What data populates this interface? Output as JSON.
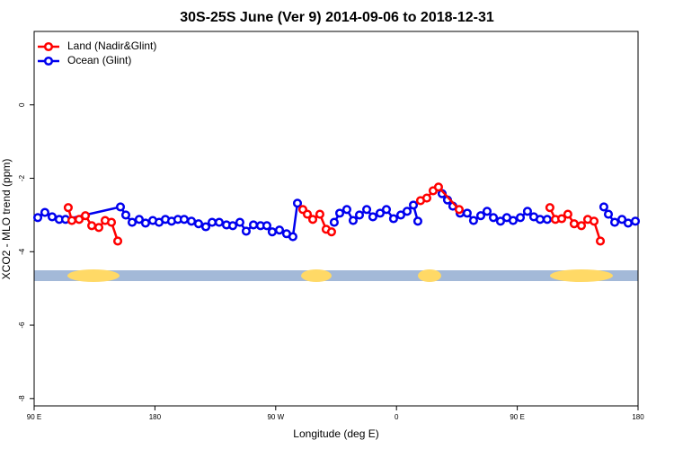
{
  "chart_data": {
    "type": "line",
    "title": "30S-25S June (Ver 9)   2014-09-06 to 2018-12-31",
    "xlabel": "Longitude (deg E)",
    "ylabel": "XCO2 - MLO trend (ppm)",
    "xlim": [
      90,
      540
    ],
    "ylim": [
      -8.2,
      2
    ],
    "xticks": [
      {
        "value": 90,
        "label": "90 E"
      },
      180,
      {
        "value": 270,
        "label": "90 W"
      },
      {
        "value": 360,
        "label": "0"
      },
      {
        "value": 450,
        "label": "90 E"
      },
      {
        "value": 540,
        "label": "180"
      }
    ],
    "yticks": [
      0,
      -2,
      -4,
      -6,
      -8
    ],
    "legend": "top-left",
    "series": [
      {
        "name": "Land (Nadir&Glint)",
        "color": "#ff0000",
        "x": [
          115.4,
          118.1,
          123.5,
          128.2,
          132.9,
          138.2,
          142.9,
          147.6,
          152.3,
          null,
          290.2,
          293.6,
          297.6,
          302.9,
          307.6,
          311.6,
          null,
          377.9,
          382.6,
          387.3,
          391.3,
          406.7,
          null,
          474.3,
          478.4,
          483.1,
          487.7,
          492.4,
          497.8,
          502.5,
          507.2,
          511.9
        ],
        "values": [
          -2.8,
          -3.15,
          -3.12,
          -3.02,
          -3.29,
          -3.34,
          -3.15,
          -3.2,
          -3.71,
          null,
          -2.85,
          -2.98,
          -3.12,
          -2.98,
          -3.39,
          -3.46,
          null,
          -2.61,
          -2.54,
          -2.34,
          -2.24,
          -2.85,
          null,
          -2.8,
          -3.12,
          -3.1,
          -2.98,
          -3.24,
          -3.29,
          -3.12,
          -3.17,
          -3.71
        ]
      },
      {
        "name": "Ocean (Glint)",
        "color": "#0000ee",
        "x": [
          92.7,
          98.0,
          103.4,
          108.7,
          113.4,
          154.3,
          158.3,
          163.0,
          168.3,
          173.0,
          178.4,
          183.1,
          187.8,
          192.4,
          197.1,
          201.8,
          207.2,
          212.5,
          217.9,
          222.6,
          227.9,
          233.3,
          238.0,
          243.3,
          248.0,
          253.4,
          258.7,
          263.4,
          267.4,
          272.8,
          278.1,
          282.8,
          286.2,
          null,
          313.6,
          317.7,
          323.0,
          327.7,
          332.4,
          337.8,
          342.4,
          347.8,
          352.5,
          357.8,
          363.2,
          367.9,
          372.6,
          375.9,
          null,
          394.0,
          398.0,
          402.0,
          407.4,
          412.7,
          417.4,
          422.8,
          427.5,
          432.2,
          437.5,
          442.2,
          446.9,
          452.3,
          457.6,
          462.3,
          467.0,
          472.3,
          null,
          514.5,
          517.9,
          522.6,
          528.0,
          532.6,
          538.0
        ],
        "values": [
          -3.07,
          -2.93,
          -3.05,
          -3.12,
          -3.12,
          -2.78,
          -3.0,
          -3.2,
          -3.12,
          -3.22,
          -3.15,
          -3.2,
          -3.12,
          -3.17,
          -3.12,
          -3.12,
          -3.17,
          -3.24,
          -3.32,
          -3.2,
          -3.2,
          -3.27,
          -3.29,
          -3.2,
          -3.44,
          -3.27,
          -3.29,
          -3.29,
          -3.46,
          -3.41,
          -3.51,
          -3.59,
          -2.68,
          null,
          -3.2,
          -2.95,
          -2.85,
          -3.15,
          -3.0,
          -2.85,
          -3.05,
          -2.95,
          -2.85,
          -3.1,
          -3.0,
          -2.9,
          -2.73,
          -3.17,
          null,
          -2.42,
          -2.59,
          -2.76,
          -2.95,
          -2.95,
          -3.15,
          -3.02,
          -2.9,
          -3.07,
          -3.17,
          -3.07,
          -3.15,
          -3.07,
          -2.9,
          -3.05,
          -3.12,
          -3.12,
          null,
          -2.78,
          -2.98,
          -3.2,
          -3.12,
          -3.22,
          -3.17
        ]
      }
    ]
  }
}
